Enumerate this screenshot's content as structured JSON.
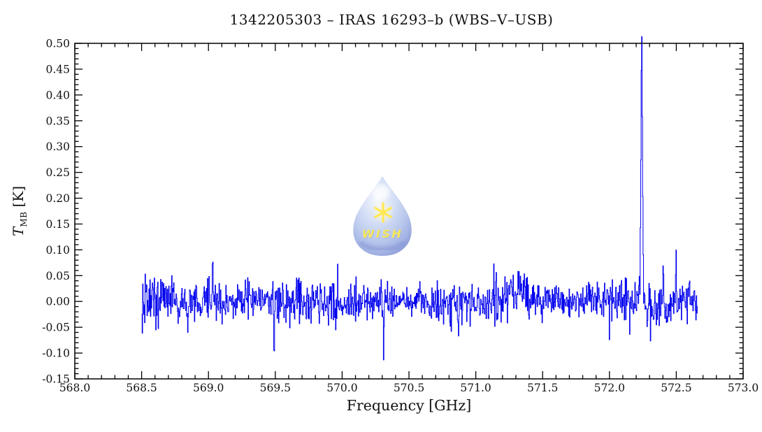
{
  "chart_data": {
    "type": "line",
    "subtype": "spectrum-histogram",
    "title": "1342205303 – IRAS 16293–b (WBS–V–USB)",
    "xlabel": "Frequency [GHz]",
    "ylabel_main": "T",
    "ylabel_sub": "MB",
    "ylabel_unit": "[K]",
    "xlim": [
      568.0,
      573.0
    ],
    "ylim": [
      -0.15,
      0.5
    ],
    "x_major_step": 0.5,
    "x_minor_step": 0.1,
    "y_major_step": 0.05,
    "y_minor_step": 0.01,
    "x_tick_decimals": 1,
    "y_tick_decimals": 2,
    "x_tick_labels": [
      "568.0",
      "568.5",
      "569.0",
      "569.5",
      "570.0",
      "570.5",
      "571.0",
      "571.5",
      "572.0",
      "572.5",
      "573.0"
    ],
    "y_tick_labels": [
      "-0.15",
      "-0.10",
      "-0.05",
      "0.00",
      "0.05",
      "0.10",
      "0.15",
      "0.20",
      "0.25",
      "0.30",
      "0.35",
      "0.40",
      "0.45",
      "0.50"
    ],
    "line_color": "#0000ee",
    "frame_color": "#000000",
    "grid": false,
    "legend": false,
    "baseline_k": 0.0,
    "data_start_ghz": 568.5,
    "data_end_ghz": 572.66,
    "n_channels": 1150,
    "noise_sigma_k": 0.02,
    "noise_seed": 20110,
    "features": [
      {
        "name": "main-emission-line",
        "freq_ghz": 572.241,
        "peak_k": 0.465,
        "sigma_ghz": 0.0058
      },
      {
        "name": "main-line-wings",
        "freq_ghz": 572.241,
        "peak_k": 0.035,
        "sigma_ghz": 0.016
      },
      {
        "name": "secondary-line",
        "freq_ghz": 572.498,
        "peak_k": 0.095,
        "sigma_ghz": 0.003
      },
      {
        "name": "noise-spike-up",
        "freq_ghz": 569.032,
        "peak_k": 0.088,
        "sigma_ghz": 0.0028
      },
      {
        "name": "noise-spike-down-1",
        "freq_ghz": 569.49,
        "peak_k": -0.08,
        "sigma_ghz": 0.0028
      },
      {
        "name": "noise-spike-down-2",
        "freq_ghz": 570.31,
        "peak_k": -0.088,
        "sigma_ghz": 0.0028
      },
      {
        "name": "noise-spike-down-3",
        "freq_ghz": 568.846,
        "peak_k": -0.058,
        "sigma_ghz": 0.0028
      },
      {
        "name": "broad-noise-bump",
        "freq_ghz": 571.33,
        "peak_k": 0.022,
        "sigma_ghz": 0.05
      }
    ]
  },
  "logo": {
    "text": "WISH",
    "drop_color": "#aabce9",
    "star_color": "#ffe42e",
    "text_color": "#f4e438"
  }
}
